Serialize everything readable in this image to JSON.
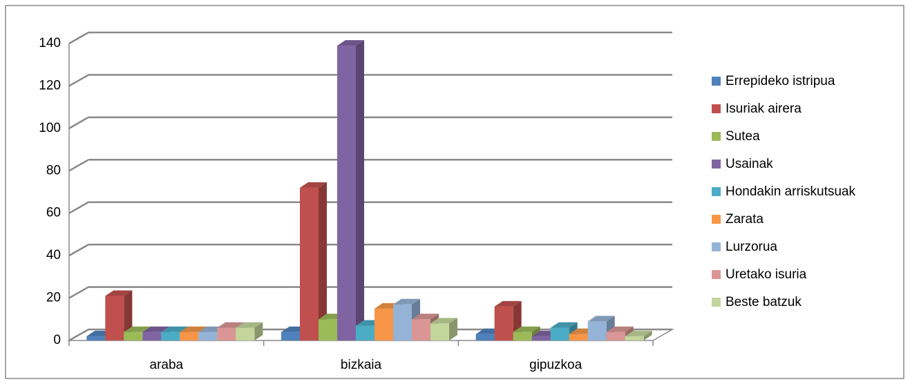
{
  "chart_data": {
    "type": "bar3d",
    "categories": [
      "araba",
      "bizkaia",
      "gipuzkoa"
    ],
    "series": [
      {
        "name": "Errepideko istripua",
        "color": "#4f81bd",
        "values": [
          2,
          4,
          3
        ]
      },
      {
        "name": "Isuriak airera",
        "color": "#c0504d",
        "values": [
          21,
          72,
          16
        ]
      },
      {
        "name": "Sutea",
        "color": "#9bbb59",
        "values": [
          4,
          10,
          4
        ]
      },
      {
        "name": "Usainak",
        "color": "#8064a2",
        "values": [
          4,
          139,
          2
        ]
      },
      {
        "name": "Hondakin arriskutsuak",
        "color": "#4bacc6",
        "values": [
          4,
          7,
          6
        ]
      },
      {
        "name": "Zarata",
        "color": "#f79646",
        "values": [
          4,
          15,
          3
        ]
      },
      {
        "name": "Lurzorua",
        "color": "#95b3d7",
        "values": [
          4,
          17,
          9
        ]
      },
      {
        "name": "Uretako isuria",
        "color": "#da9694",
        "values": [
          6,
          10,
          4
        ]
      },
      {
        "name": "Beste batzuk",
        "color": "#c3d69b",
        "values": [
          6,
          8,
          2
        ]
      }
    ],
    "ylim": [
      0,
      140
    ],
    "yticks": [
      0,
      20,
      40,
      60,
      80,
      100,
      120,
      140
    ],
    "grid": true,
    "legend": "right"
  }
}
